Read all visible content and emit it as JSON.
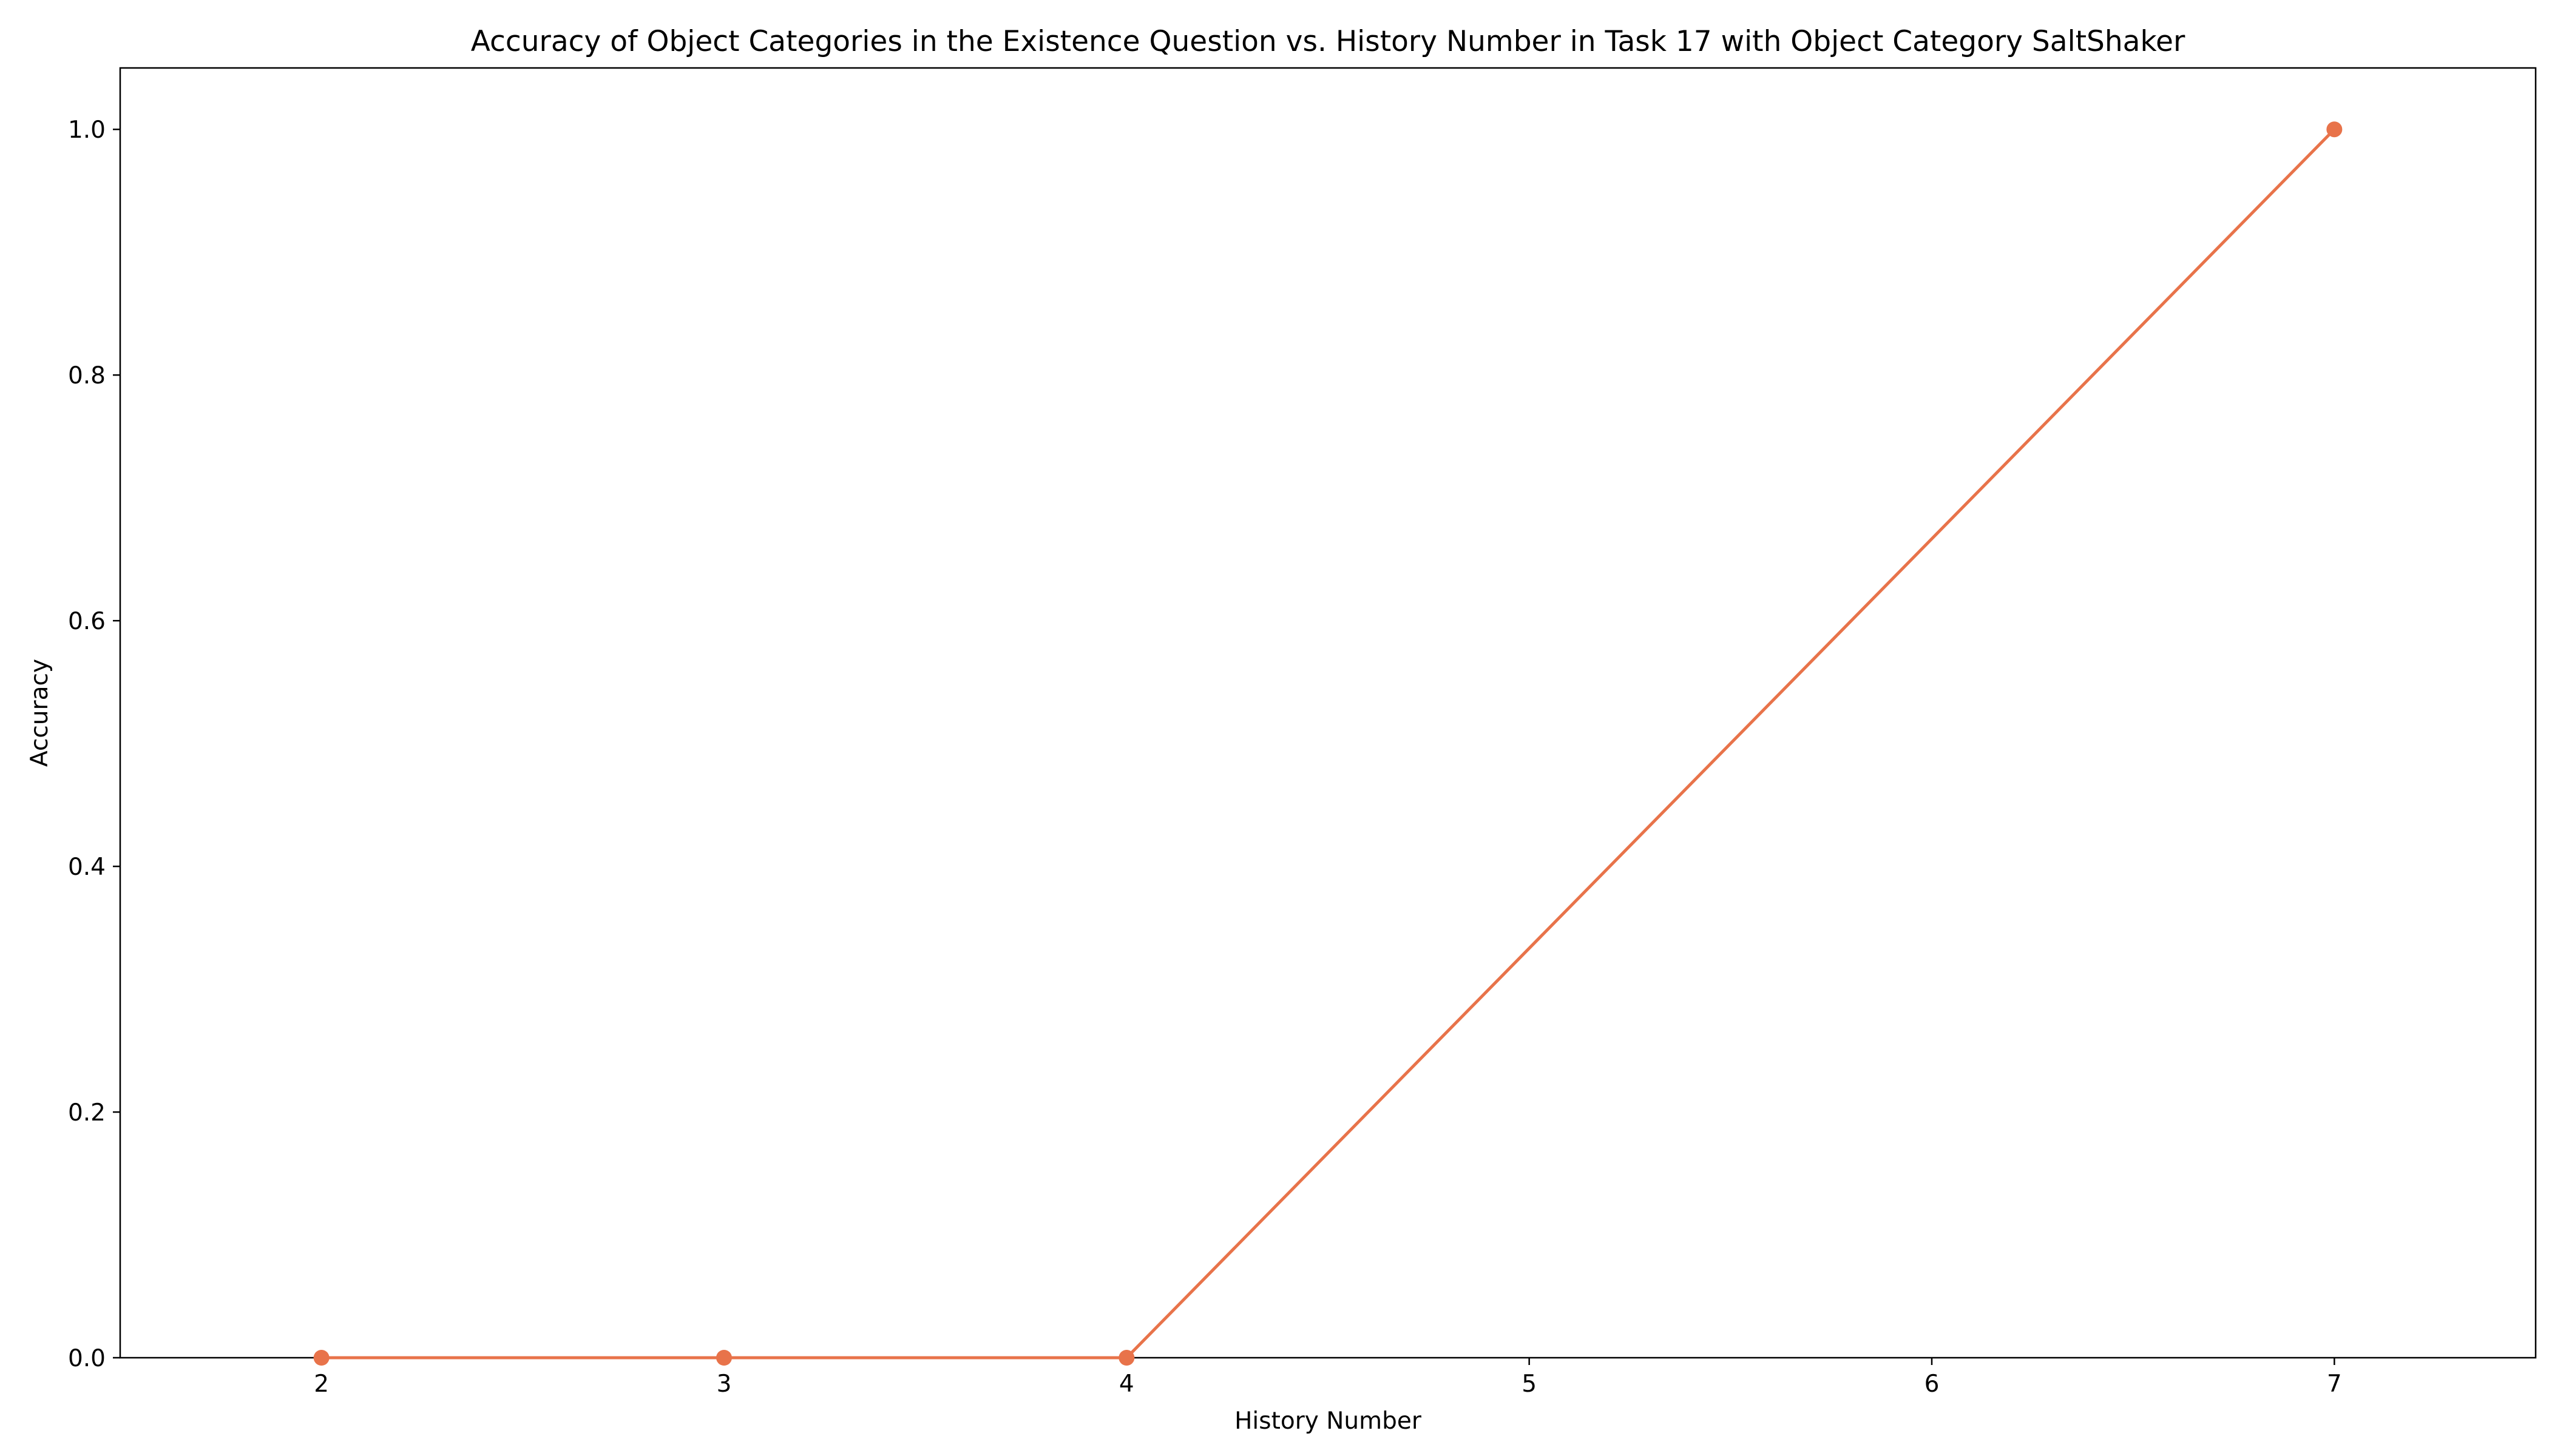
{
  "chart_data": {
    "type": "line",
    "title": "Accuracy of Object Categories in the Existence Question vs. History Number in Task 17 with Object Category SaltShaker",
    "xlabel": "History Number",
    "ylabel": "Accuracy",
    "x": [
      2,
      3,
      4,
      7
    ],
    "series": [
      {
        "values": [
          0.0,
          0.0,
          0.0,
          1.0
        ],
        "color": "#e8734a",
        "marker": "circle"
      }
    ],
    "xlim": [
      1.5,
      7.5
    ],
    "ylim": [
      0.0,
      1.05
    ],
    "x_ticks": [
      2,
      3,
      4,
      5,
      6,
      7
    ],
    "x_tick_labels": [
      "2",
      "3",
      "4",
      "5",
      "6",
      "7"
    ],
    "y_ticks": [
      0.0,
      0.2,
      0.4,
      0.6,
      0.8,
      1.0
    ],
    "y_tick_labels": [
      "0.0",
      "0.2",
      "0.4",
      "0.6",
      "0.8",
      "1.0"
    ],
    "grid": false,
    "legend": "none"
  }
}
